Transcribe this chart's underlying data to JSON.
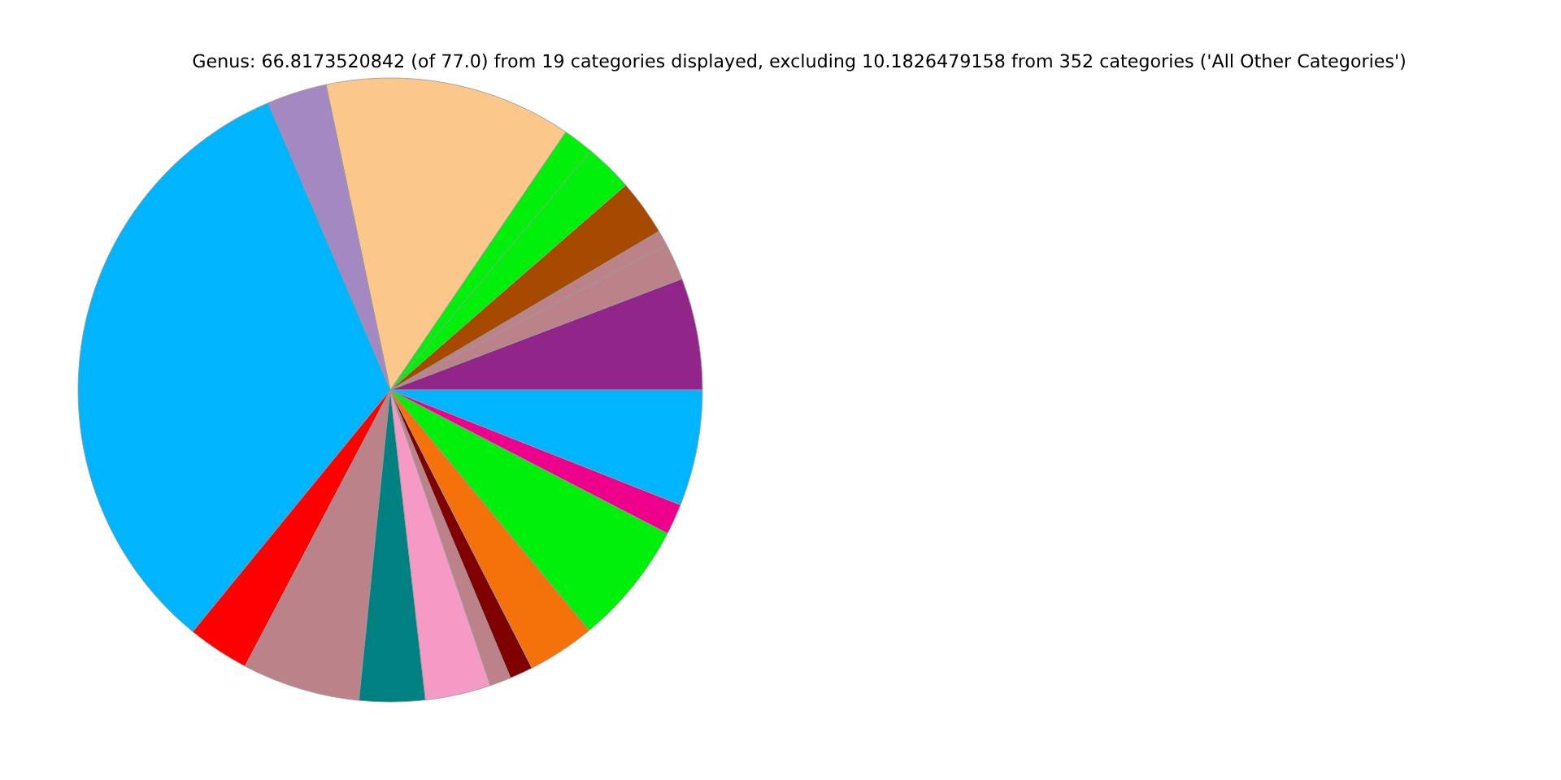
{
  "chart_data": {
    "type": "pie",
    "title": "Genus: 66.8173520842 (of 77.0) from 19 categories displayed, excluding 10.1826479158 from 352 categories ('All Other Categories')",
    "categories": [
      null,
      null,
      null,
      null,
      null,
      null,
      null,
      null,
      null,
      null,
      null,
      null,
      null,
      null,
      null,
      null,
      null,
      null,
      null
    ],
    "values": [
      5.8,
      1.9,
      0.8,
      2.9,
      2.5,
      1.6,
      12.8,
      3.1,
      32.7,
      3.2,
      6.1,
      3.4,
      3.4,
      1.1,
      1.2,
      3.5,
      6.4,
      1.6,
      6.0
    ],
    "colors": [
      "#912589",
      "#bc8289",
      "#bc8289",
      "#a54a00",
      "#00f00c",
      "#00f00c",
      "#fcc78a",
      "#a488c1",
      "#00b4ff",
      "#ff0000",
      "#bc8289",
      "#008080",
      "#f49ac5",
      "#bc8289",
      "#800000",
      "#f47209",
      "#00f00c",
      "#ec008c",
      "#00b4ff"
    ]
  }
}
